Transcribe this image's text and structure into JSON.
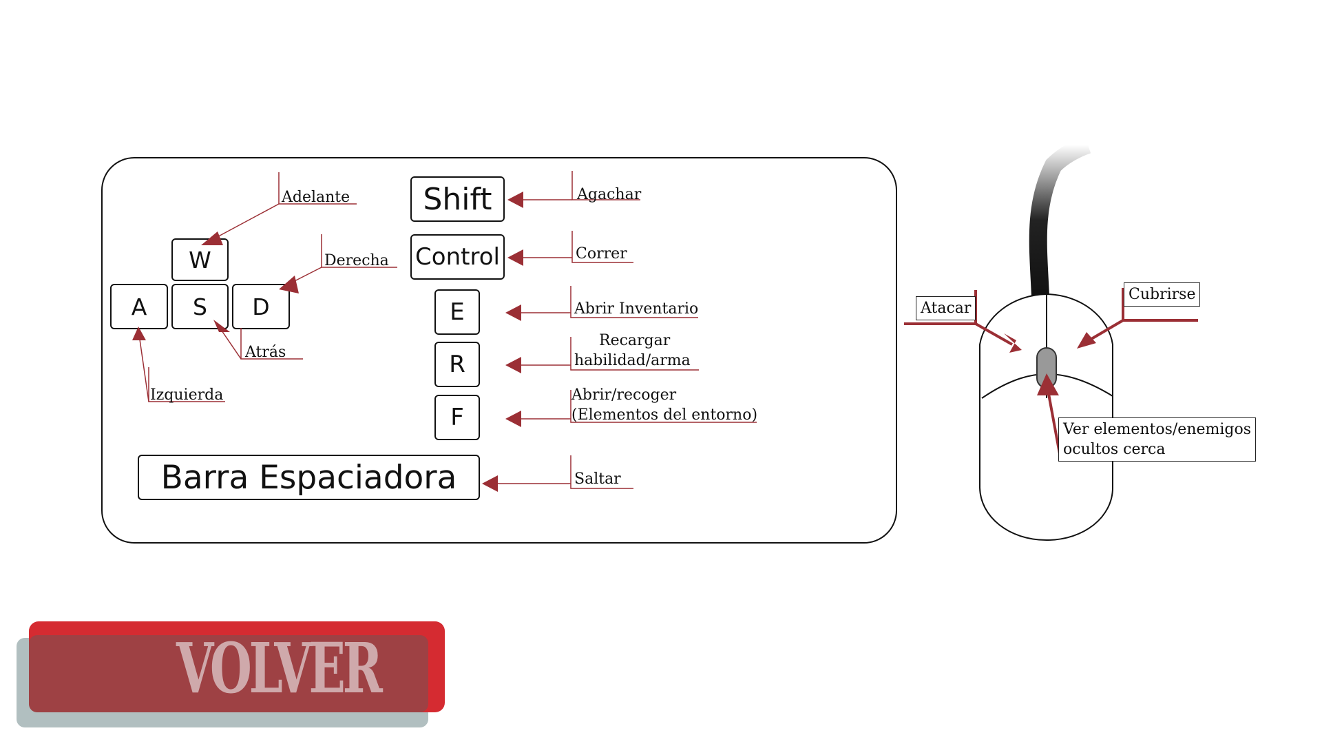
{
  "keyboard": {
    "keys": {
      "w": "W",
      "a": "A",
      "s": "S",
      "d": "D",
      "shift": "Shift",
      "control": "Control",
      "e": "E",
      "r": "R",
      "f": "F",
      "space": "Barra Espaciadora"
    },
    "actions": {
      "forward": "Adelante",
      "right": "Derecha",
      "back": "Atrás",
      "left": "Izquierda",
      "crouch": "Agachar",
      "run": "Correr",
      "inventory": "Abrir Inventario",
      "reload_line1": "Recargar",
      "reload_line2": "habilidad/arma",
      "pickup_line1": "Abrir/recoger",
      "pickup_line2": "(Elementos del entorno)",
      "jump": "Saltar"
    }
  },
  "mouse": {
    "attack": "Atacar",
    "cover": "Cubrirse",
    "scan_line1": "Ver elementos/enemigos",
    "scan_line2": "ocultos cerca"
  },
  "back_button": {
    "label": "VOLVER"
  },
  "colors": {
    "arrow": "#9b2f35",
    "mouse_arrow": "#9b2f35",
    "button_top": "#d52b31",
    "button_face": "#9e4144",
    "button_shadow": "#b1bfc0",
    "button_text": "#cfa9ab"
  }
}
